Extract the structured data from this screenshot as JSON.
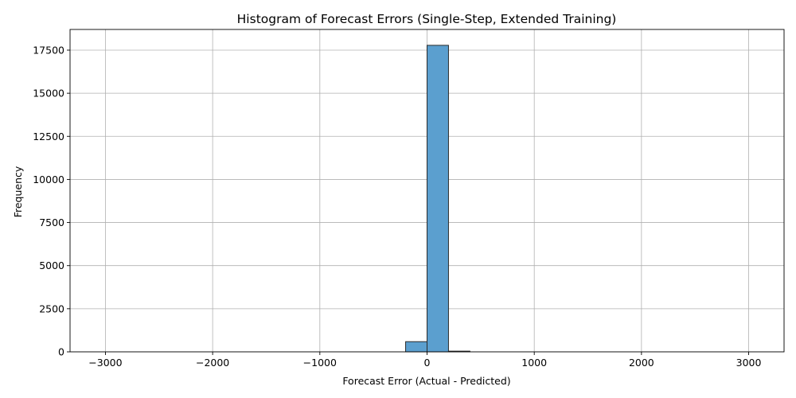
{
  "chart_data": {
    "type": "bar",
    "title": "Histogram of Forecast Errors (Single-Step, Extended Training)",
    "xlabel": "Forecast Error (Actual - Predicted)",
    "ylabel": "Frequency",
    "xlim": [
      -3330,
      3330
    ],
    "ylim": [
      0,
      18700
    ],
    "xticks": [
      -3000,
      -2000,
      -1000,
      0,
      1000,
      2000,
      3000
    ],
    "xtick_labels": [
      "−3000",
      "−2000",
      "−1000",
      "0",
      "1000",
      "2000",
      "3000"
    ],
    "yticks": [
      0,
      2500,
      5000,
      7500,
      10000,
      12500,
      15000,
      17500
    ],
    "ytick_labels": [
      "0",
      "2500",
      "5000",
      "7500",
      "10000",
      "12500",
      "15000",
      "17500"
    ],
    "grid": true,
    "bar_color": "#5b9fcf",
    "bins": [
      {
        "x0": -200,
        "x1": 0,
        "count": 590
      },
      {
        "x0": 0,
        "x1": 200,
        "count": 17780
      },
      {
        "x0": 200,
        "x1": 400,
        "count": 40
      }
    ]
  }
}
